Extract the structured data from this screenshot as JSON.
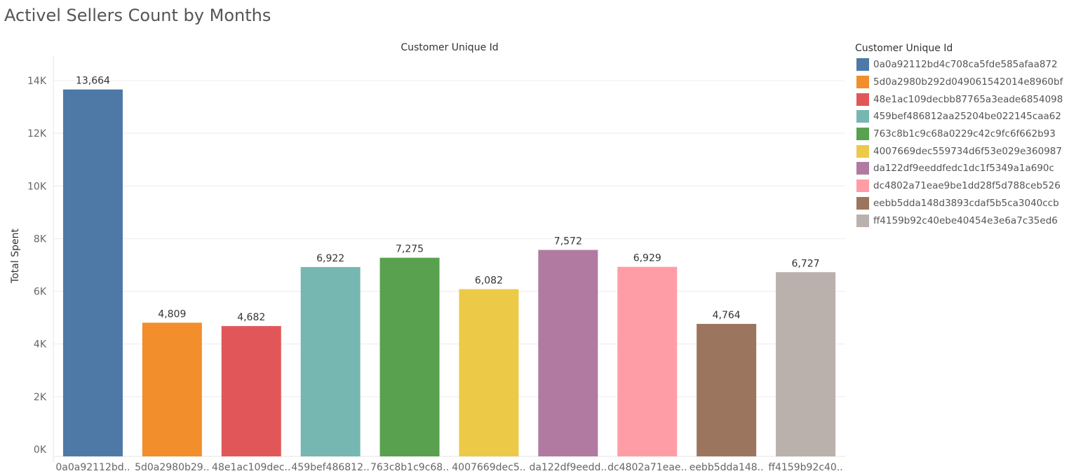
{
  "title": "Activel Sellers Count by Months",
  "chart_data": {
    "type": "bar",
    "column_header": "Customer Unique Id",
    "ylabel": "Total Spent",
    "xlabel": "",
    "ylim": [
      0,
      14600
    ],
    "y_ticks": [
      0,
      2000,
      4000,
      6000,
      8000,
      10000,
      12000,
      14000
    ],
    "y_tick_labels": [
      "0K",
      "2K",
      "4K",
      "6K",
      "8K",
      "10K",
      "12K",
      "14K"
    ],
    "grid": true,
    "legend_position": "right",
    "legend_title": "Customer Unique Id",
    "categories": [
      "0a0a92112bd4c708ca5fde585afaa872",
      "5d0a2980b292d049061542014e8960bf",
      "48e1ac109decbb87765a3eade6854098",
      "459bef486812aa25204be022145caa62",
      "763c8b1c9c68a0229c42c9fc6f662b93",
      "4007669dec559734d6f53e029e360987",
      "da122df9eeddfedc1dc1f5349a1a690c",
      "dc4802a71eae9be1dd28f5d788ceb526",
      "eebb5dda148d3893cdaf5b5ca3040ccb",
      "ff4159b92c40ebe40454e3e6a7c35ed6"
    ],
    "category_tick_labels": [
      "0a0a92112bd..",
      "5d0a2980b29..",
      "48e1ac109dec..",
      "459bef486812..",
      "763c8b1c9c68..",
      "4007669dec5..",
      "da122df9eedd..",
      "dc4802a71eae..",
      "eebb5dda148..",
      "ff4159b92c40.."
    ],
    "values": [
      13664,
      4809,
      4682,
      6922,
      7275,
      6082,
      7572,
      6929,
      4764,
      6727
    ],
    "value_labels": [
      "13,664",
      "4,809",
      "4,682",
      "6,922",
      "7,275",
      "6,082",
      "7,572",
      "6,929",
      "4,764",
      "6,727"
    ],
    "colors": [
      "#4e79a7",
      "#f28e2b",
      "#e15759",
      "#76b7b2",
      "#59a14f",
      "#edc948",
      "#b07aa1",
      "#ff9da7",
      "#9c755f",
      "#bab0ac"
    ]
  }
}
